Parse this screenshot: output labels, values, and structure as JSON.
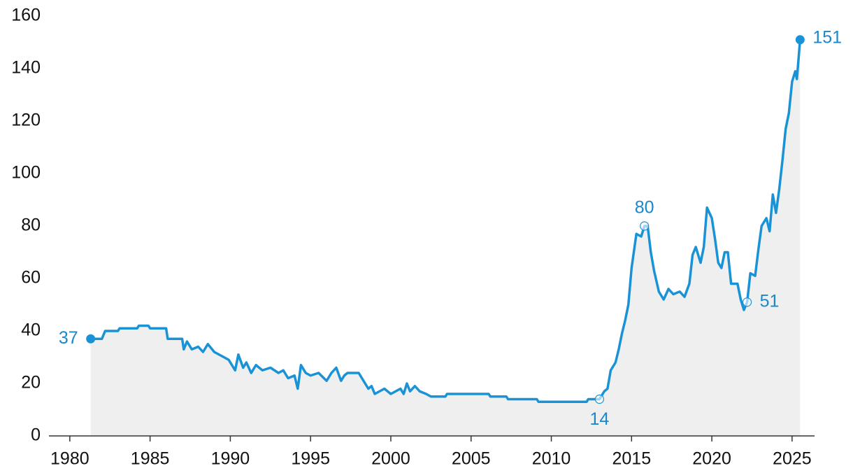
{
  "chart_data": {
    "type": "line",
    "x": [
      1981.3,
      1982,
      1982.2,
      1983,
      1983.1,
      1984.2,
      1984.3,
      1984.9,
      1985,
      1986,
      1986.1,
      1987,
      1987.1,
      1987.3,
      1987.6,
      1988,
      1988.3,
      1988.6,
      1989,
      1989.3,
      1989.6,
      1989.9,
      1990.1,
      1990.3,
      1990.5,
      1990.8,
      1991,
      1991.3,
      1991.6,
      1992,
      1992.5,
      1993,
      1993.3,
      1993.6,
      1994,
      1994.2,
      1994.4,
      1994.7,
      1995,
      1995.5,
      1996,
      1996.3,
      1996.6,
      1996.9,
      1997.1,
      1997.3,
      1998,
      1998.3,
      1998.6,
      1998.8,
      1999,
      1999.3,
      1999.6,
      2000,
      2000.3,
      2000.6,
      2000.8,
      2001,
      2001.2,
      2001.5,
      2001.8,
      2002.2,
      2002.5,
      2003.4,
      2003.5,
      2006.1,
      2006.2,
      2007.2,
      2007.3,
      2009.1,
      2009.2,
      2012.2,
      2012.3,
      2013,
      2013.3,
      2013.5,
      2013.7,
      2014,
      2014.2,
      2014.4,
      2014.6,
      2014.8,
      2015,
      2015.3,
      2015.6,
      2015.8,
      2016,
      2016.2,
      2016.4,
      2016.7,
      2017,
      2017.3,
      2017.6,
      2018,
      2018.3,
      2018.6,
      2018.8,
      2019,
      2019.3,
      2019.5,
      2019.7,
      2020,
      2020.2,
      2020.4,
      2020.6,
      2020.8,
      2021,
      2021.2,
      2021.6,
      2021.8,
      2022,
      2022.2,
      2022.4,
      2022.7,
      2022.9,
      2023.1,
      2023.4,
      2023.6,
      2023.8,
      2024,
      2024.2,
      2024.4,
      2024.6,
      2024.8,
      2025,
      2025.2,
      2025.3,
      2025.5
    ],
    "series": [
      {
        "color": "#1a93d6",
        "fill": "#efefef",
        "values": [
          37,
          37,
          40,
          40,
          41,
          41,
          42,
          42,
          41,
          41,
          37,
          37,
          33,
          36,
          33,
          34,
          32,
          35,
          32,
          31,
          30,
          29,
          27,
          25,
          31,
          26,
          28,
          24,
          27,
          25,
          26,
          24,
          25,
          22,
          23,
          18,
          27,
          24,
          23,
          24,
          21,
          24,
          26,
          21,
          23,
          24,
          24,
          21,
          18,
          19,
          16,
          17,
          18,
          16,
          17,
          18,
          16,
          20,
          17,
          19,
          17,
          16,
          15,
          15,
          16,
          16,
          15,
          15,
          14,
          14,
          13,
          13,
          14,
          14,
          17,
          18,
          25,
          28,
          33,
          39,
          44,
          50,
          64,
          77,
          76,
          80,
          80,
          70,
          63,
          55,
          52,
          56,
          54,
          55,
          53,
          58,
          69,
          72,
          66,
          72,
          87,
          83,
          75,
          66,
          64,
          70,
          70,
          58,
          58,
          52,
          48,
          51,
          62,
          61,
          71,
          80,
          83,
          78,
          92,
          85,
          94,
          105,
          117,
          123,
          135,
          139,
          136,
          151
        ]
      }
    ],
    "annotations": [
      {
        "x": 1981.3,
        "y": 37,
        "marker": "filled"
      },
      {
        "x": 2013.0,
        "y": 14,
        "marker": "hollow"
      },
      {
        "x": 2015.8,
        "y": 80,
        "marker": "hollow"
      },
      {
        "x": 2022.2,
        "y": 51,
        "marker": "hollow"
      },
      {
        "x": 2025.5,
        "y": 151,
        "marker": "filled"
      }
    ],
    "xlim": [
      1978.7,
      2026.4
    ],
    "xticks": [
      1980,
      1985,
      1990,
      1995,
      2000,
      2005,
      2010,
      2015,
      2020,
      2025
    ],
    "ylim": [
      0,
      160
    ],
    "yticks": [
      0,
      20,
      40,
      60,
      80,
      100,
      120,
      140,
      160
    ]
  }
}
